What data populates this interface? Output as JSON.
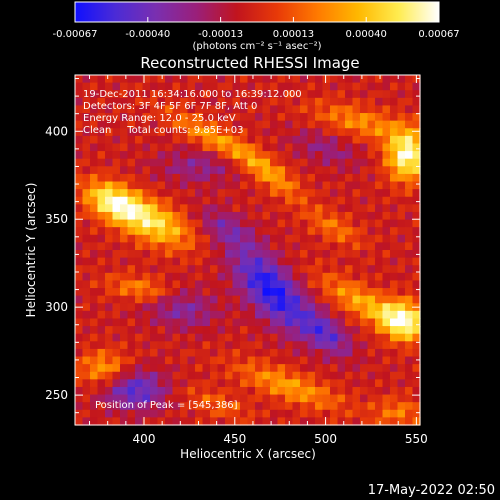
{
  "colorbar": {
    "tick_labels": [
      "-0.00067",
      "-0.00040",
      "-0.00013",
      "0.00013",
      "0.00040",
      "0.00067"
    ],
    "unit_label": "(photons cm⁻² s⁻¹ asec⁻²)",
    "colors": [
      "#1010ff",
      "#4b2bd6",
      "#7a2fb0",
      "#9a1f7a",
      "#c1141e",
      "#e83a08",
      "#ff7a00",
      "#ffb800",
      "#ffec50",
      "#ffffff"
    ]
  },
  "chart_data": {
    "type": "heatmap",
    "title": "Reconstructed RHESSI Image",
    "xlabel": "Heliocentric X (arcsec)",
    "ylabel": "Heliocentric Y (arcsec)",
    "xlim": [
      362,
      552
    ],
    "ylim": [
      233,
      432
    ],
    "x_ticks": [
      400,
      450,
      500,
      550
    ],
    "y_ticks": [
      250,
      300,
      350,
      400
    ],
    "x_tick_labels": [
      "400",
      "450",
      "500",
      "550"
    ],
    "y_tick_labels": [
      "250",
      "300",
      "350",
      "400"
    ],
    "annotations": [
      "19-Dec-2011 16:34:16.000 to 16:39:12.000",
      "Detectors: 3F 4F 5F 6F 7F 8F, Att 0",
      "Energy Range: 12.0 - 25.0 keV",
      "Clean     Total counts: 9.85E+03"
    ],
    "peak_label": "Position of Peak = [545,386]",
    "value_range": [
      -0.00067,
      0.00067
    ],
    "blobs": [
      {
        "x": 383,
        "y": 360,
        "sx": 12,
        "sy": 7,
        "rot": -25,
        "v": 0.00058
      },
      {
        "x": 405,
        "y": 348,
        "sx": 16,
        "sy": 8,
        "rot": -25,
        "v": 0.00052
      },
      {
        "x": 545,
        "y": 386,
        "sx": 8,
        "sy": 10,
        "rot": 0,
        "v": 0.00067
      },
      {
        "x": 520,
        "y": 405,
        "sx": 20,
        "sy": 6,
        "rot": -15,
        "v": 0.0003
      },
      {
        "x": 525,
        "y": 300,
        "sx": 22,
        "sy": 6,
        "rot": -30,
        "v": 0.0004
      },
      {
        "x": 543,
        "y": 293,
        "sx": 8,
        "sy": 8,
        "rot": 0,
        "v": 0.00055
      },
      {
        "x": 440,
        "y": 395,
        "sx": 22,
        "sy": 5,
        "rot": -30,
        "v": 0.00035
      },
      {
        "x": 470,
        "y": 375,
        "sx": 16,
        "sy": 5,
        "rot": -40,
        "v": 0.0003
      },
      {
        "x": 400,
        "y": 310,
        "sx": 14,
        "sy": 5,
        "rot": -10,
        "v": 0.00032
      },
      {
        "x": 378,
        "y": 265,
        "sx": 10,
        "sy": 7,
        "rot": 0,
        "v": 0.00035
      },
      {
        "x": 480,
        "y": 255,
        "sx": 22,
        "sy": 6,
        "rot": -20,
        "v": 0.00035
      },
      {
        "x": 505,
        "y": 345,
        "sx": 12,
        "sy": 5,
        "rot": -30,
        "v": 0.00025
      },
      {
        "x": 540,
        "y": 240,
        "sx": 10,
        "sy": 6,
        "rot": 0,
        "v": 0.00025
      },
      {
        "x": 440,
        "y": 245,
        "sx": 14,
        "sy": 5,
        "rot": -20,
        "v": 0.0002
      },
      {
        "x": 470,
        "y": 310,
        "sx": 20,
        "sy": 9,
        "rot": -50,
        "v": -0.0006
      },
      {
        "x": 500,
        "y": 285,
        "sx": 12,
        "sy": 6,
        "rot": -40,
        "v": -0.00038
      },
      {
        "x": 395,
        "y": 253,
        "sx": 12,
        "sy": 8,
        "rot": 0,
        "v": -0.00045
      },
      {
        "x": 420,
        "y": 300,
        "sx": 14,
        "sy": 8,
        "rot": -10,
        "v": -0.0003
      },
      {
        "x": 430,
        "y": 380,
        "sx": 16,
        "sy": 7,
        "rot": 0,
        "v": -0.00022
      },
      {
        "x": 500,
        "y": 390,
        "sx": 14,
        "sy": 6,
        "rot": -20,
        "v": -0.0002
      },
      {
        "x": 445,
        "y": 345,
        "sx": 12,
        "sy": 6,
        "rot": -30,
        "v": -0.00025
      }
    ]
  },
  "footer": {
    "timestamp": "17-May-2022 02:50"
  }
}
